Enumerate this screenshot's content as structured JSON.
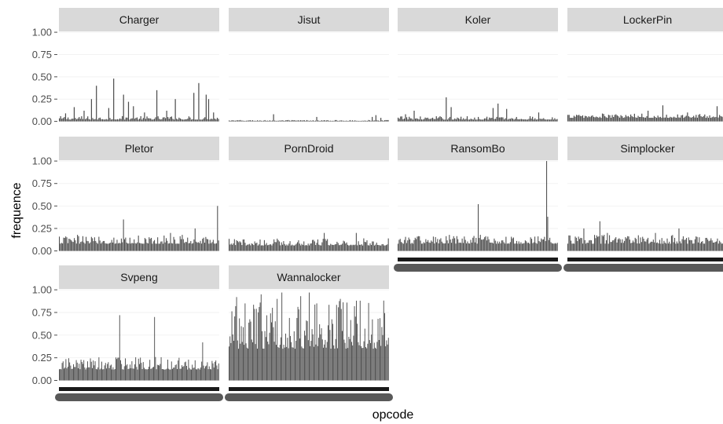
{
  "chart_data": {
    "type": "bar",
    "xlabel": "opcode",
    "ylabel": "frequence",
    "ylim": [
      0,
      1
    ],
    "yticks": [
      "0.00",
      "0.25",
      "0.50",
      "0.75",
      "1.00"
    ],
    "grid": true,
    "layout": {
      "columns": 4,
      "rows": 3
    },
    "bar_color": "#4d4d4d",
    "strip_color": "#d9d9d9",
    "panels": [
      {
        "name": "Charger",
        "count": 130,
        "base": 0.02,
        "noise": 0.04,
        "peaks": [
          [
            0.05,
            0.09
          ],
          [
            0.12,
            0.16
          ],
          [
            0.2,
            0.12
          ],
          [
            0.26,
            0.25
          ],
          [
            0.3,
            0.4
          ],
          [
            0.4,
            0.15
          ],
          [
            0.44,
            0.48
          ],
          [
            0.52,
            0.3
          ],
          [
            0.56,
            0.22
          ],
          [
            0.6,
            0.17
          ],
          [
            0.7,
            0.1
          ],
          [
            0.8,
            0.35
          ],
          [
            0.88,
            0.12
          ],
          [
            0.95,
            0.25
          ],
          [
            1.1,
            0.32
          ],
          [
            1.14,
            0.43
          ],
          [
            1.2,
            0.3
          ],
          [
            1.22,
            0.25
          ],
          [
            1.26,
            0.1
          ]
        ],
        "peak_span": 1.3
      },
      {
        "name": "Jisut",
        "count": 130,
        "base": 0.006,
        "noise": 0.01,
        "peaks": [
          [
            0.28,
            0.08
          ],
          [
            0.55,
            0.05
          ],
          [
            0.9,
            0.05
          ],
          [
            0.92,
            0.07
          ],
          [
            0.95,
            0.04
          ]
        ],
        "peak_span": 1.0
      },
      {
        "name": "Koler",
        "count": 130,
        "base": 0.02,
        "noise": 0.04,
        "peaks": [
          [
            0.05,
            0.08
          ],
          [
            0.1,
            0.12
          ],
          [
            0.3,
            0.27
          ],
          [
            0.33,
            0.16
          ],
          [
            0.5,
            0.05
          ],
          [
            0.6,
            0.15
          ],
          [
            0.63,
            0.2
          ],
          [
            0.68,
            0.14
          ],
          [
            0.88,
            0.1
          ]
        ],
        "peak_span": 1.0
      },
      {
        "name": "LockerPin",
        "count": 130,
        "base": 0.04,
        "noise": 0.05,
        "peaks": [
          [
            0.5,
            0.12
          ],
          [
            0.6,
            0.18
          ],
          [
            0.75,
            0.1
          ],
          [
            0.94,
            0.17
          ]
        ],
        "peak_span": 1.0
      },
      {
        "name": "Pletor",
        "count": 150,
        "base": 0.08,
        "noise": 0.1,
        "peaks": [
          [
            0.4,
            0.35
          ],
          [
            0.7,
            0.2
          ],
          [
            0.85,
            0.25
          ],
          [
            0.99,
            0.5
          ]
        ],
        "peak_span": 1.0
      },
      {
        "name": "PornDroid",
        "count": 150,
        "base": 0.06,
        "noise": 0.08,
        "peaks": [
          [
            0.6,
            0.2
          ],
          [
            0.8,
            0.2
          ]
        ],
        "peak_span": 1.0
      },
      {
        "name": "RansomBo",
        "count": 150,
        "base": 0.08,
        "noise": 0.1,
        "peaks": [
          [
            0.5,
            0.52
          ],
          [
            0.93,
            1.0
          ],
          [
            0.94,
            0.38
          ]
        ],
        "peak_span": 1.0
      },
      {
        "name": "Simplocker",
        "count": 150,
        "base": 0.08,
        "noise": 0.1,
        "peaks": [
          [
            0.1,
            0.25
          ],
          [
            0.2,
            0.33
          ],
          [
            0.25,
            0.2
          ],
          [
            0.55,
            0.2
          ],
          [
            0.7,
            0.25
          ],
          [
            0.98,
            0.55
          ]
        ],
        "peak_span": 1.0
      },
      {
        "name": "Svpeng",
        "count": 170,
        "base": 0.12,
        "noise": 0.14,
        "peaks": [
          [
            0.38,
            0.72
          ],
          [
            0.6,
            0.7
          ],
          [
            0.75,
            0.25
          ],
          [
            0.9,
            0.42
          ]
        ],
        "peak_span": 1.0
      },
      {
        "name": "Wannalocker",
        "count": 170,
        "base": 0.35,
        "noise": 0.55,
        "peaks": [
          [
            0.05,
            0.92
          ],
          [
            0.1,
            0.85
          ],
          [
            0.2,
            0.95
          ],
          [
            0.3,
            0.9
          ],
          [
            0.33,
            0.97
          ],
          [
            0.45,
            0.93
          ],
          [
            0.5,
            0.97
          ],
          [
            0.55,
            0.85
          ],
          [
            0.7,
            0.9
          ],
          [
            0.8,
            0.88
          ],
          [
            0.82,
            0.88
          ]
        ],
        "peak_span": 1.0
      }
    ]
  }
}
